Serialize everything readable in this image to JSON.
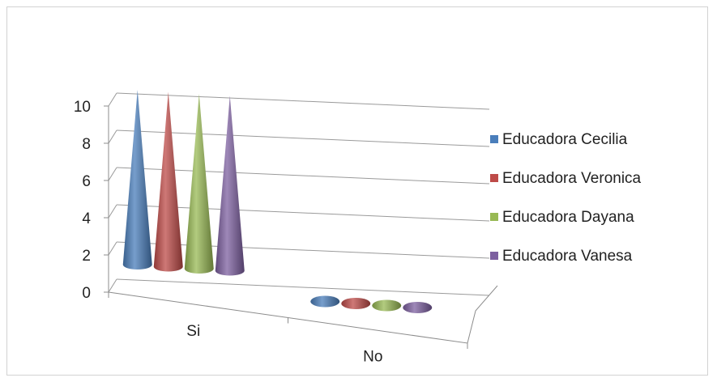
{
  "chart_data": {
    "type": "bar",
    "style": "3d-cone",
    "categories": [
      "Si",
      "No"
    ],
    "series": [
      {
        "name": "Educadora Cecilia",
        "values": [
          10,
          0
        ],
        "color": "#4a7ebb"
      },
      {
        "name": "Educadora Veronica",
        "values": [
          10,
          0
        ],
        "color": "#be4b48"
      },
      {
        "name": "Educadora Dayana",
        "values": [
          10,
          0
        ],
        "color": "#98b954"
      },
      {
        "name": "Educadora Vanesa",
        "values": [
          10,
          0
        ],
        "color": "#7d60a0"
      }
    ],
    "ylim": [
      0,
      10
    ],
    "yticks": [
      0,
      2,
      4,
      6,
      8,
      10
    ],
    "ytick_labels": [
      "0",
      "2",
      "4",
      "6",
      "8",
      "10"
    ],
    "title": "",
    "xlabel": "",
    "ylabel": "",
    "grid": true,
    "legend_position": "right"
  }
}
